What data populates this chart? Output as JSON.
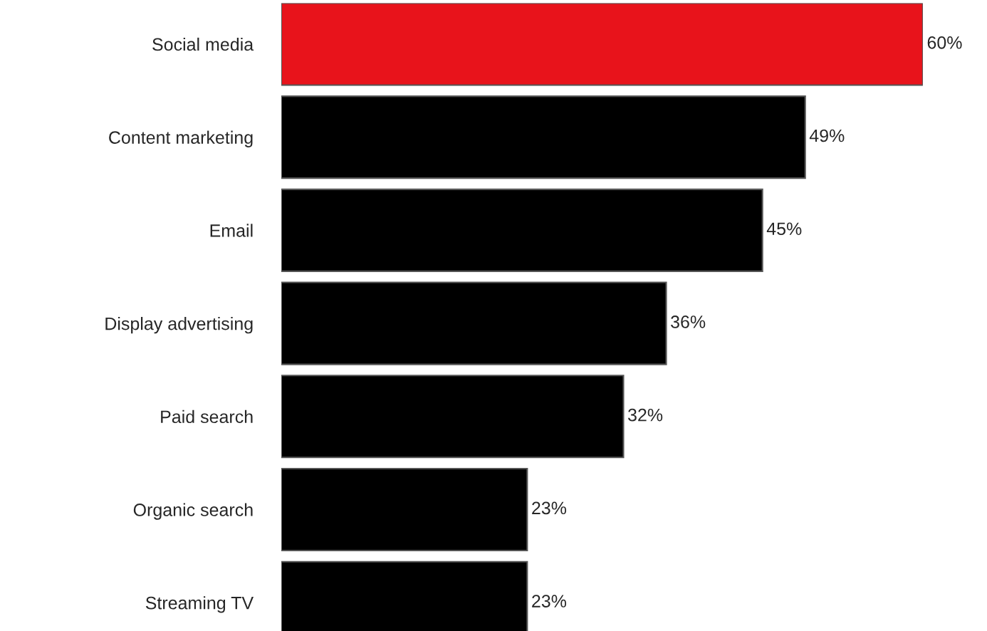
{
  "chart_data": {
    "type": "bar",
    "orientation": "horizontal",
    "categories": [
      "Social media",
      "Content marketing",
      "Email",
      "Display advertising",
      "Paid search",
      "Organic search",
      "Streaming TV"
    ],
    "values": [
      60,
      49,
      45,
      36,
      32,
      23,
      23
    ],
    "value_labels": [
      "60%",
      "49%",
      "45%",
      "36%",
      "32%",
      "23%",
      "23%"
    ],
    "colors": [
      "#e8131b",
      "#000000",
      "#000000",
      "#000000",
      "#000000",
      "#000000",
      "#000000"
    ],
    "grid": false,
    "legend": false
  }
}
